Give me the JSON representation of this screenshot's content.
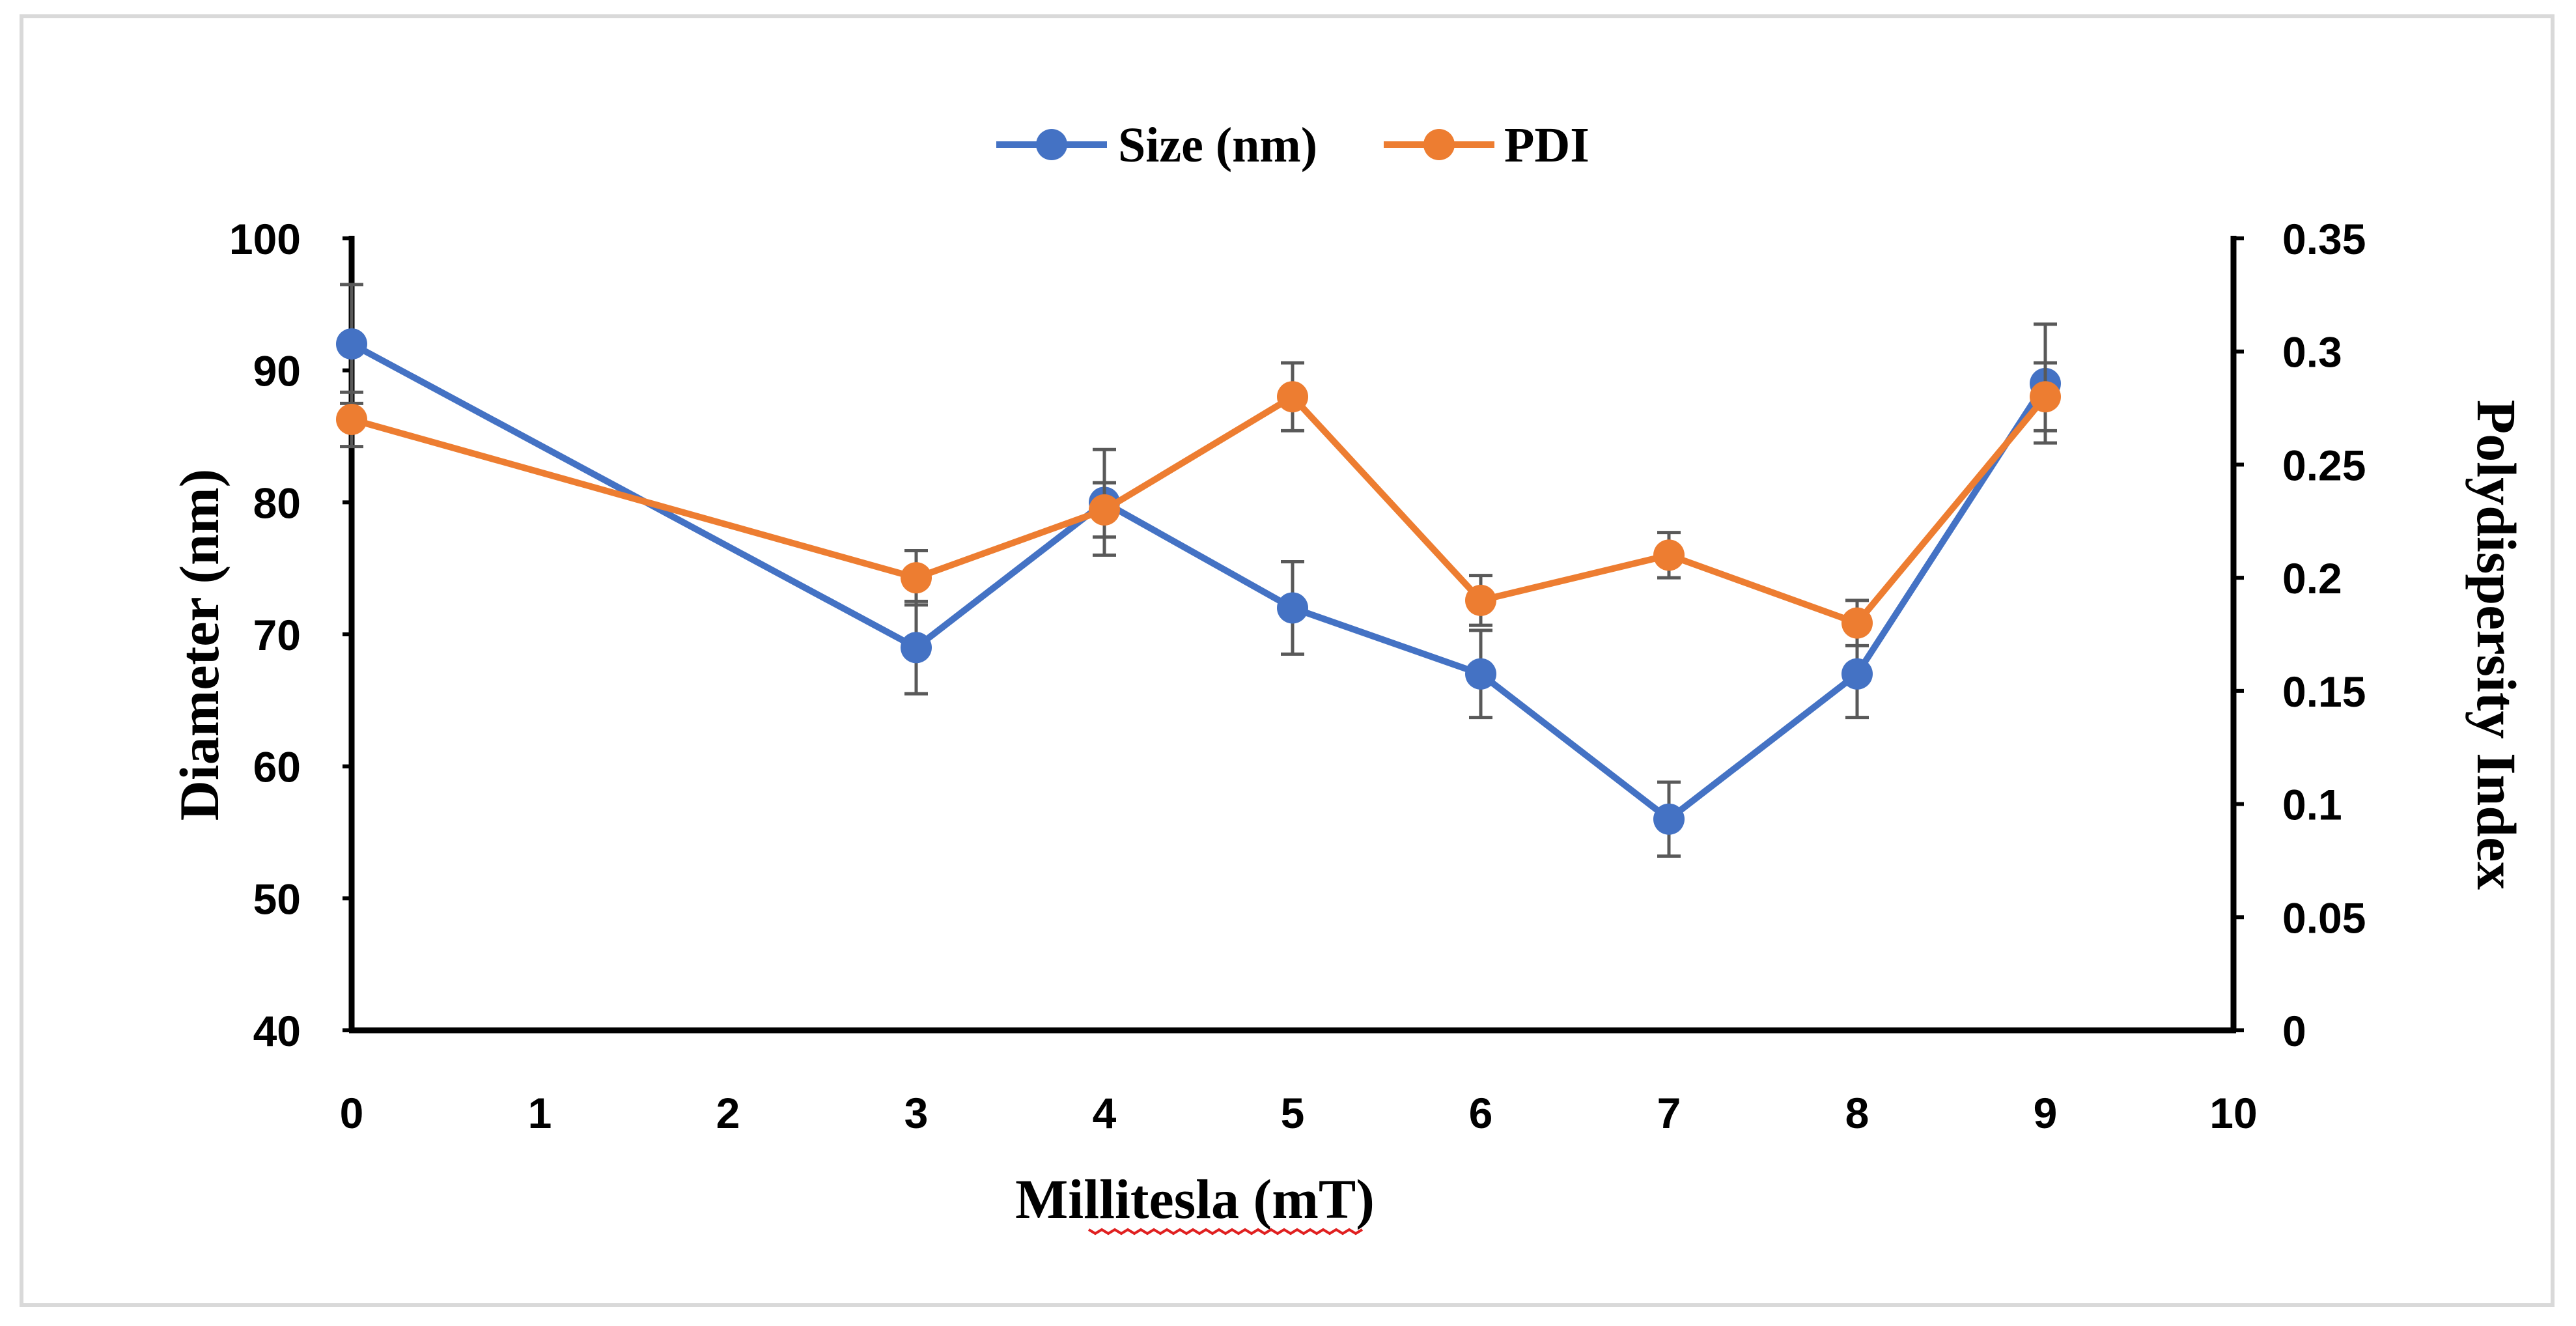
{
  "chart_data": {
    "type": "line",
    "title": "",
    "xlabel": "Millitesla (mT)",
    "ylabel": "Diameter (nm)",
    "y2label": "Polydispersity Index",
    "xlim": [
      0,
      10
    ],
    "ylim": [
      40,
      100
    ],
    "y2lim": [
      0,
      0.35
    ],
    "xticks": [
      "0",
      "1",
      "2",
      "3",
      "4",
      "5",
      "6",
      "7",
      "8",
      "9",
      "10"
    ],
    "yticks": [
      "40",
      "50",
      "60",
      "70",
      "80",
      "90",
      "100"
    ],
    "y2ticks": [
      "0",
      "0.05",
      "0.1",
      "0.15",
      "0.2",
      "0.25",
      "0.3",
      "0.35"
    ],
    "legend_position": "top-center",
    "grid": false,
    "series": [
      {
        "name": "Size (nm)",
        "axis": "left",
        "color": "#4472C4",
        "x": [
          0,
          3,
          4,
          5,
          6,
          7,
          8,
          9
        ],
        "values": [
          92,
          69,
          80,
          72,
          67,
          56,
          67,
          89
        ],
        "errors": [
          4.5,
          3.5,
          4,
          3.5,
          3.3,
          2.8,
          3.3,
          4.5
        ]
      },
      {
        "name": "PDI",
        "axis": "right",
        "color": "#ED7D31",
        "x": [
          0,
          3,
          4,
          5,
          6,
          7,
          8,
          9
        ],
        "values": [
          0.27,
          0.2,
          0.23,
          0.28,
          0.19,
          0.21,
          0.18,
          0.28
        ],
        "errors": [
          0.012,
          0.012,
          0.012,
          0.015,
          0.011,
          0.01,
          0.01,
          0.015
        ]
      }
    ],
    "error_bar_color": "#595959",
    "axis_color": "#000000",
    "spell_underline_color": "#e02020"
  }
}
